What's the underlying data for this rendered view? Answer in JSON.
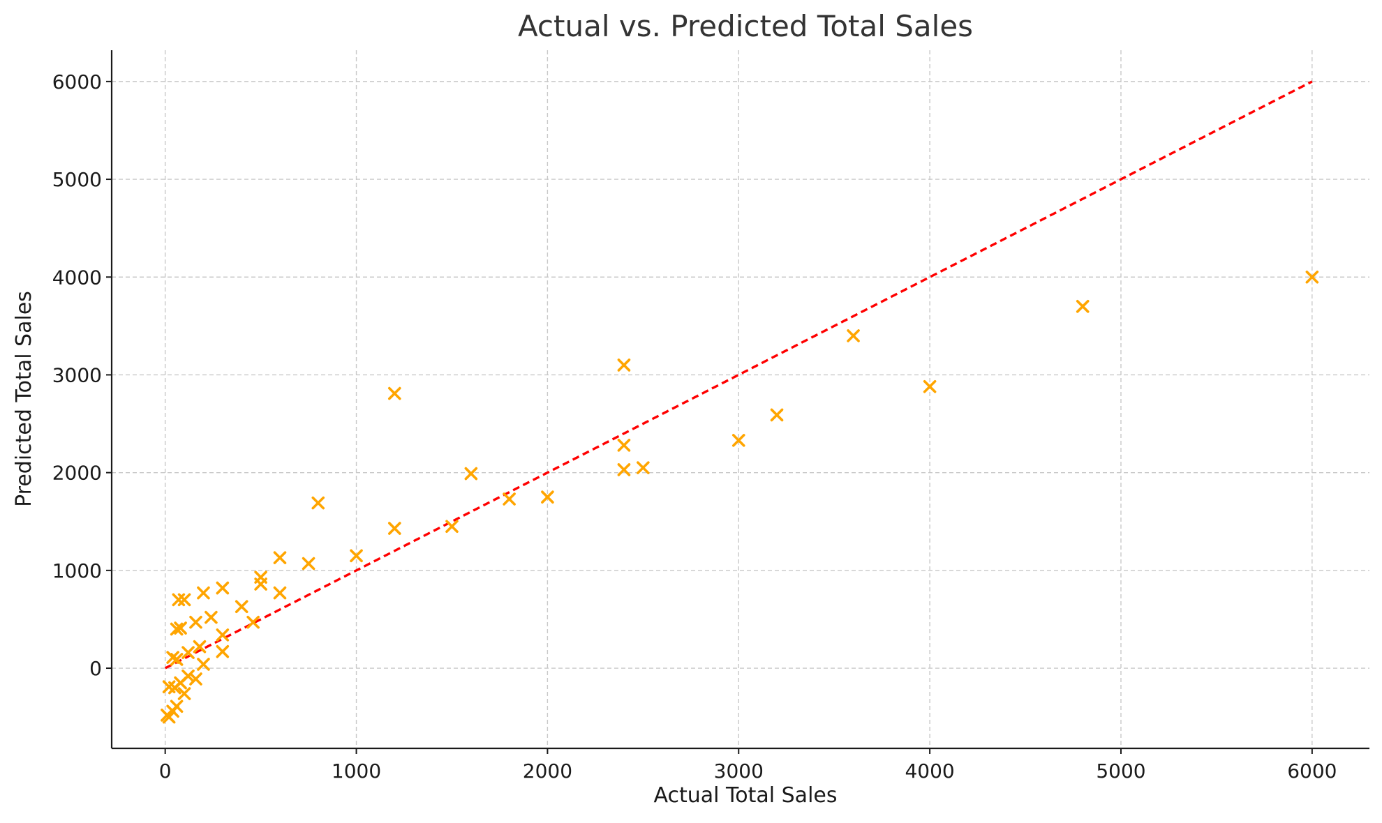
{
  "chart_data": {
    "type": "scatter",
    "title": "Actual vs. Predicted Total Sales",
    "xlabel": "Actual Total Sales",
    "ylabel": "Predicted Total Sales",
    "xlim": [
      -280,
      6300
    ],
    "ylim": [
      -820,
      6320
    ],
    "xticks": [
      0,
      1000,
      2000,
      3000,
      4000,
      5000,
      6000
    ],
    "yticks": [
      0,
      1000,
      2000,
      3000,
      4000,
      5000,
      6000
    ],
    "grid": true,
    "marker": "x",
    "marker_color": "#FFA500",
    "reference_line": {
      "x": [
        0,
        6000
      ],
      "y": [
        0,
        6000
      ],
      "color": "#FF0000",
      "style": "dashed"
    },
    "points": [
      {
        "x": 10,
        "y": -480
      },
      {
        "x": 20,
        "y": -500
      },
      {
        "x": 40,
        "y": -440
      },
      {
        "x": 60,
        "y": -390
      },
      {
        "x": 20,
        "y": -190
      },
      {
        "x": 50,
        "y": -200
      },
      {
        "x": 80,
        "y": -150
      },
      {
        "x": 100,
        "y": -260
      },
      {
        "x": 120,
        "y": -80
      },
      {
        "x": 160,
        "y": -110
      },
      {
        "x": 200,
        "y": 40
      },
      {
        "x": 40,
        "y": 110
      },
      {
        "x": 60,
        "y": 90
      },
      {
        "x": 120,
        "y": 160
      },
      {
        "x": 180,
        "y": 220
      },
      {
        "x": 300,
        "y": 170
      },
      {
        "x": 300,
        "y": 340
      },
      {
        "x": 60,
        "y": 400
      },
      {
        "x": 80,
        "y": 410
      },
      {
        "x": 160,
        "y": 470
      },
      {
        "x": 240,
        "y": 520
      },
      {
        "x": 460,
        "y": 470
      },
      {
        "x": 400,
        "y": 630
      },
      {
        "x": 70,
        "y": 700
      },
      {
        "x": 100,
        "y": 700
      },
      {
        "x": 200,
        "y": 770
      },
      {
        "x": 300,
        "y": 820
      },
      {
        "x": 500,
        "y": 860
      },
      {
        "x": 500,
        "y": 930
      },
      {
        "x": 600,
        "y": 770
      },
      {
        "x": 600,
        "y": 1130
      },
      {
        "x": 750,
        "y": 1070
      },
      {
        "x": 1000,
        "y": 1150
      },
      {
        "x": 800,
        "y": 1690
      },
      {
        "x": 1200,
        "y": 1430
      },
      {
        "x": 1200,
        "y": 2810
      },
      {
        "x": 1500,
        "y": 1450
      },
      {
        "x": 1600,
        "y": 1990
      },
      {
        "x": 1800,
        "y": 1730
      },
      {
        "x": 2000,
        "y": 1750
      },
      {
        "x": 2400,
        "y": 2030
      },
      {
        "x": 2400,
        "y": 2280
      },
      {
        "x": 2400,
        "y": 3100
      },
      {
        "x": 2500,
        "y": 2050
      },
      {
        "x": 3000,
        "y": 2330
      },
      {
        "x": 3200,
        "y": 2590
      },
      {
        "x": 3600,
        "y": 3400
      },
      {
        "x": 4000,
        "y": 2880
      },
      {
        "x": 4800,
        "y": 3700
      },
      {
        "x": 6000,
        "y": 4000
      }
    ]
  }
}
